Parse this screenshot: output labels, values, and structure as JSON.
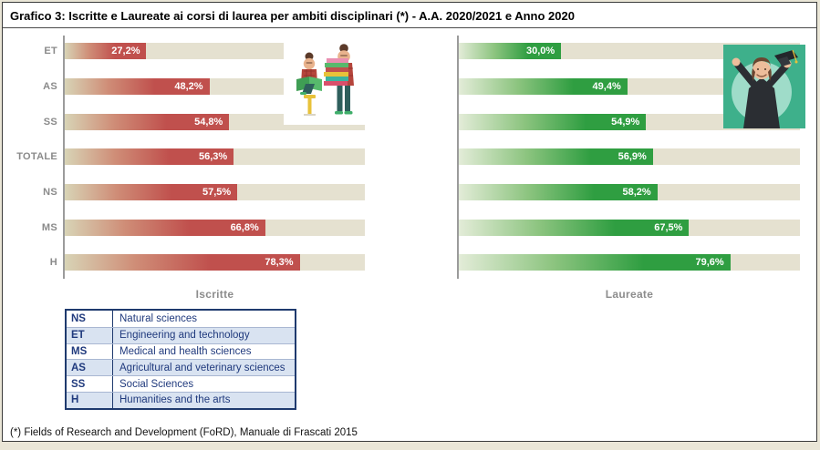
{
  "title": "Grafico 3: Iscritte e Laureate ai corsi di laurea per ambiti disciplinari (*) - A.A. 2020/2021 e Anno 2020",
  "footnote": "(*) Fields of Research and Development (FoRD), Manuale di Frascati 2015",
  "chart_data": {
    "type": "bar",
    "orientation": "horizontal",
    "categories": [
      "ET",
      "AS",
      "SS",
      "TOTALE",
      "NS",
      "MS",
      "H"
    ],
    "series": [
      {
        "name": "Iscritte",
        "values": [
          27.2,
          48.2,
          54.8,
          56.3,
          57.5,
          66.8,
          78.3
        ],
        "labels": [
          "27,2%",
          "48,2%",
          "54,8%",
          "56,3%",
          "57,5%",
          "66,8%",
          "78,3%"
        ],
        "color": "#c0504d"
      },
      {
        "name": "Laureate",
        "values": [
          30.0,
          49.4,
          54.9,
          56.9,
          58.2,
          67.5,
          79.6
        ],
        "labels": [
          "30,0%",
          "49,4%",
          "54,9%",
          "56,9%",
          "58,2%",
          "67,5%",
          "79,6%"
        ],
        "color": "#2f9e41"
      }
    ],
    "xlim": [
      0,
      100
    ],
    "grid": false,
    "track_color": "#e5e1d0",
    "value_labels_inside_bars": true
  },
  "legend": {
    "rows": [
      {
        "abbr": "NS",
        "desc": "Natural sciences"
      },
      {
        "abbr": "ET",
        "desc": "Engineering and technology"
      },
      {
        "abbr": "MS",
        "desc": "Medical and health sciences"
      },
      {
        "abbr": "AS",
        "desc": "Agricultural and veterinary sciences"
      },
      {
        "abbr": "SS",
        "desc": "Social Sciences"
      },
      {
        "abbr": "H",
        "desc": "Humanities and the arts"
      }
    ],
    "text_color": "#203a7d",
    "alt_row_color": "#d9e3f1"
  },
  "illustrations": {
    "left": "two-students-with-books-illustration",
    "right": "graduate-woman-throwing-cap-illustration"
  },
  "colors": {
    "outer_background": "#eae6d7",
    "panel_background": "#ffffff",
    "category_label": "#8a8a8a",
    "caption": "#8c8c8c"
  }
}
